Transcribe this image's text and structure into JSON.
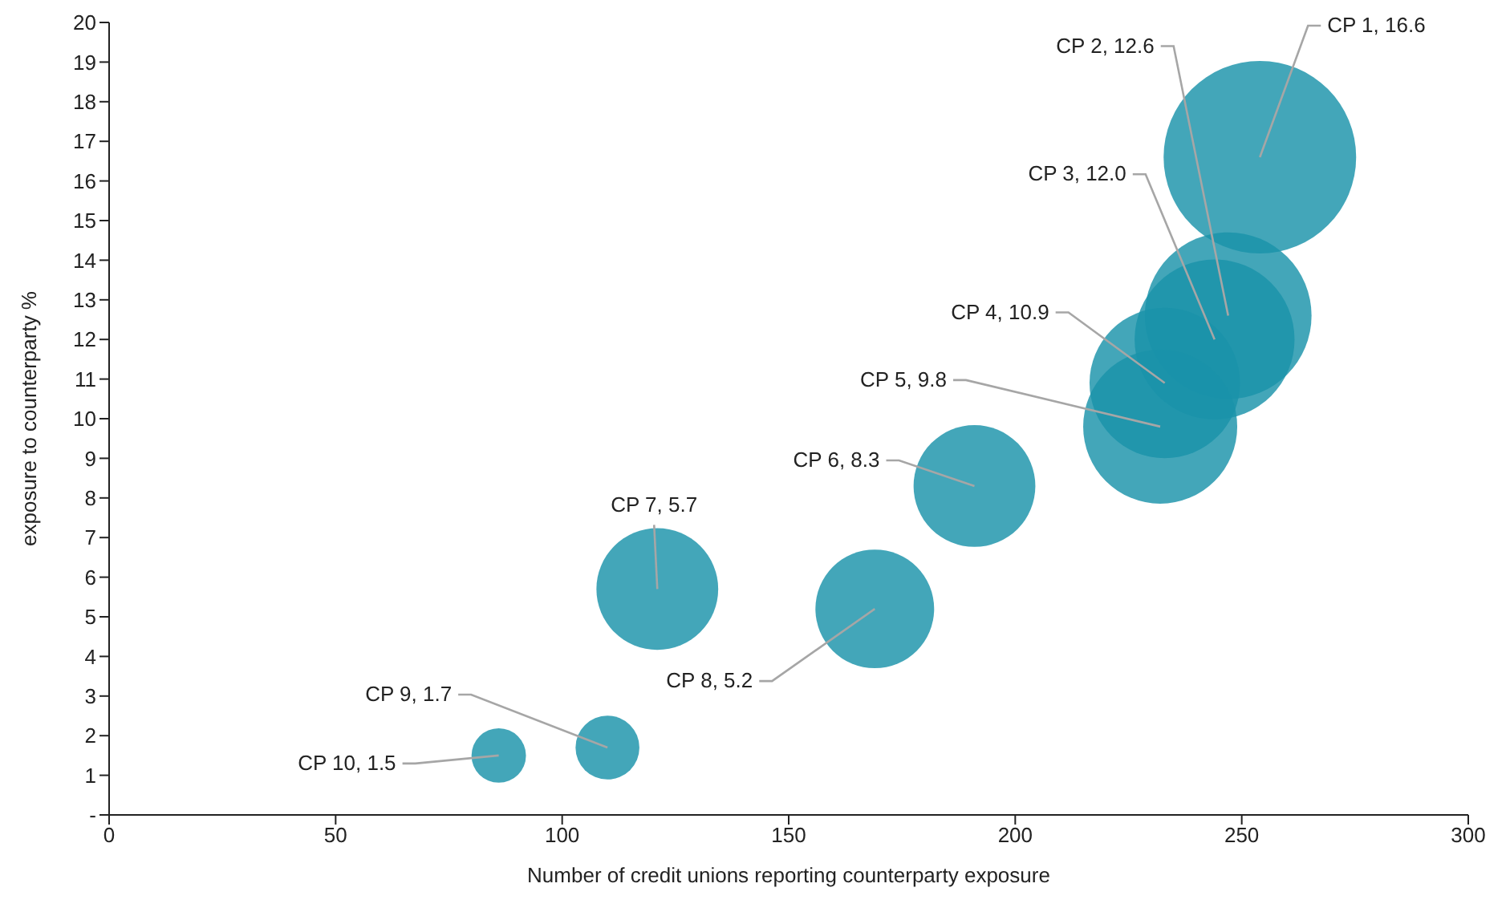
{
  "chart_data": {
    "type": "bubble",
    "xlabel": "Number of credit unions reporting counterparty exposure",
    "ylabel": "exposure to counterparty %",
    "x": [
      254,
      247,
      244,
      233,
      232,
      191,
      121,
      169,
      110,
      86
    ],
    "series": [
      {
        "color": "#1a93aa",
        "values": [
          16.6,
          12.6,
          12.0,
          10.9,
          9.8,
          8.3,
          5.7,
          5.2,
          1.7,
          1.5
        ],
        "sizes": [
          1,
          0.75,
          0.69,
          0.61,
          0.64,
          0.4,
          0.4,
          0.38,
          0.11,
          0.08
        ]
      }
    ],
    "xlim": [
      0,
      300
    ],
    "xticks": [
      0,
      50,
      100,
      150,
      200,
      250,
      300
    ],
    "ylim": [
      0,
      20
    ],
    "yticks": [
      {
        "value": 0,
        "label": "-"
      },
      1,
      2,
      3,
      4,
      5,
      6,
      7,
      8,
      9,
      10,
      11,
      12,
      13,
      14,
      15,
      16,
      17,
      18,
      19,
      20
    ],
    "annotations": [
      {
        "text": "CP 1, 16.6",
        "x": 254,
        "y": 16.6
      },
      {
        "text": "CP 2, 12.6",
        "x": 247,
        "y": 12.6
      },
      {
        "text": "CP 3, 12.0",
        "x": 244,
        "y": 12.0
      },
      {
        "text": "CP 4, 10.9",
        "x": 233,
        "y": 10.9
      },
      {
        "text": "CP 5, 9.8",
        "x": 232,
        "y": 9.8
      },
      {
        "text": "CP 6, 8.3",
        "x": 191,
        "y": 8.3
      },
      {
        "text": "CP 7, 5.7",
        "x": 121,
        "y": 5.7
      },
      {
        "text": "CP 8, 5.2",
        "x": 169,
        "y": 5.2
      },
      {
        "text": "CP 9, 1.7",
        "x": 110,
        "y": 1.7
      },
      {
        "text": "CP 10, 1.5",
        "x": 86,
        "y": 1.5
      }
    ]
  }
}
